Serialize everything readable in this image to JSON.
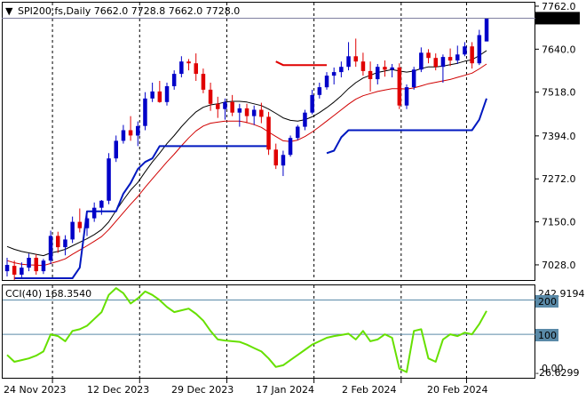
{
  "header": {
    "arrow_glyph": "▼",
    "symbol_line": "SPI200.fs,Daily  7662.0 7728.8 7662.0 7728.0"
  },
  "indicator": {
    "label": "CCI(40) 168.3540"
  },
  "price_axis": {
    "ticks": [
      "7762.0",
      "7640.0",
      "7518.0",
      "7394.0",
      "7272.0",
      "7150.0",
      "7028.0"
    ],
    "current_price_label": "7728.0"
  },
  "cci_axis": {
    "max_label": "242.9194",
    "level_200_label": "200",
    "level_100_label": "100",
    "zero_label": "0.00",
    "min_label": "-26.6299"
  },
  "x_axis": {
    "dates": [
      "24 Nov 2023",
      "12 Dec 2023",
      "29 Dec 2023",
      "17 Jan 2024",
      "2 Feb 2024",
      "20 Feb 2024"
    ]
  },
  "colors": {
    "up_candle": "#0000c8",
    "down_candle": "#e00000",
    "signal_ma": "#000000",
    "slow_ma": "#d00000",
    "stop_line": "#0018c0",
    "cci_line": "#66e000",
    "level_line": "#5a8aa8",
    "grid": "#000000"
  },
  "chart_data": {
    "type": "candlestick",
    "instrument": "SPI200.fs",
    "timeframe": "Daily",
    "price_range": [
      6985,
      7772
    ],
    "last_bar": {
      "open": 7662.0,
      "high": 7728.8,
      "low": 7662.0,
      "close": 7728.0
    },
    "ohlc": [
      [
        7010,
        7048,
        6995,
        7028
      ],
      [
        7025,
        7040,
        6985,
        7000
      ],
      [
        7000,
        7035,
        6992,
        7020
      ],
      [
        7020,
        7060,
        7010,
        7048
      ],
      [
        7048,
        7058,
        7000,
        7010
      ],
      [
        7010,
        7045,
        7002,
        7040
      ],
      [
        7040,
        7125,
        7030,
        7110
      ],
      [
        7110,
        7122,
        7062,
        7078
      ],
      [
        7078,
        7112,
        7055,
        7100
      ],
      [
        7100,
        7165,
        7090,
        7150
      ],
      [
        7150,
        7188,
        7120,
        7132
      ],
      [
        7132,
        7175,
        7110,
        7160
      ],
      [
        7160,
        7205,
        7150,
        7190
      ],
      [
        7190,
        7212,
        7170,
        7210
      ],
      [
        7210,
        7345,
        7200,
        7330
      ],
      [
        7330,
        7395,
        7320,
        7380
      ],
      [
        7380,
        7425,
        7372,
        7410
      ],
      [
        7410,
        7450,
        7380,
        7395
      ],
      [
        7395,
        7435,
        7365,
        7422
      ],
      [
        7422,
        7518,
        7410,
        7500
      ],
      [
        7500,
        7545,
        7490,
        7520
      ],
      [
        7520,
        7550,
        7488,
        7490
      ],
      [
        7490,
        7545,
        7480,
        7535
      ],
      [
        7535,
        7580,
        7525,
        7570
      ],
      [
        7570,
        7620,
        7560,
        7605
      ],
      [
        7605,
        7612,
        7580,
        7600
      ],
      [
        7600,
        7628,
        7550,
        7570
      ],
      [
        7570,
        7585,
        7515,
        7525
      ],
      [
        7525,
        7545,
        7465,
        7485
      ],
      [
        7485,
        7505,
        7445,
        7470
      ],
      [
        7470,
        7500,
        7440,
        7490
      ],
      [
        7490,
        7510,
        7450,
        7460
      ],
      [
        7460,
        7485,
        7420,
        7472
      ],
      [
        7472,
        7485,
        7430,
        7450
      ],
      [
        7450,
        7480,
        7425,
        7468
      ],
      [
        7468,
        7488,
        7430,
        7448
      ],
      [
        7448,
        7462,
        7340,
        7355
      ],
      [
        7355,
        7372,
        7300,
        7310
      ],
      [
        7310,
        7352,
        7280,
        7340
      ],
      [
        7340,
        7395,
        7335,
        7388
      ],
      [
        7388,
        7425,
        7382,
        7420
      ],
      [
        7420,
        7468,
        7410,
        7460
      ],
      [
        7460,
        7525,
        7455,
        7510
      ],
      [
        7510,
        7545,
        7500,
        7532
      ],
      [
        7532,
        7575,
        7525,
        7565
      ],
      [
        7565,
        7588,
        7540,
        7575
      ],
      [
        7575,
        7605,
        7560,
        7590
      ],
      [
        7590,
        7660,
        7580,
        7620
      ],
      [
        7620,
        7670,
        7590,
        7605
      ],
      [
        7605,
        7630,
        7565,
        7578
      ],
      [
        7578,
        7605,
        7520,
        7555
      ],
      [
        7555,
        7598,
        7540,
        7590
      ],
      [
        7590,
        7608,
        7562,
        7582
      ],
      [
        7582,
        7598,
        7560,
        7588
      ],
      [
        7588,
        7600,
        7470,
        7480
      ],
      [
        7480,
        7540,
        7470,
        7532
      ],
      [
        7532,
        7590,
        7525,
        7582
      ],
      [
        7582,
        7645,
        7575,
        7630
      ],
      [
        7630,
        7640,
        7600,
        7615
      ],
      [
        7615,
        7628,
        7580,
        7590
      ],
      [
        7590,
        7625,
        7545,
        7618
      ],
      [
        7618,
        7642,
        7592,
        7608
      ],
      [
        7608,
        7650,
        7598,
        7625
      ],
      [
        7625,
        7660,
        7620,
        7648
      ],
      [
        7648,
        7660,
        7585,
        7600
      ],
      [
        7600,
        7695,
        7595,
        7680
      ],
      [
        7662.0,
        7728.8,
        7662.0,
        7728.0
      ]
    ],
    "signal_ma": [
      7080,
      7072,
      7066,
      7062,
      7058,
      7054,
      7062,
      7066,
      7072,
      7082,
      7092,
      7102,
      7114,
      7128,
      7150,
      7182,
      7212,
      7240,
      7262,
      7292,
      7320,
      7345,
      7372,
      7395,
      7420,
      7442,
      7462,
      7475,
      7482,
      7485,
      7490,
      7492,
      7492,
      7490,
      7485,
      7480,
      7470,
      7458,
      7445,
      7438,
      7436,
      7440,
      7448,
      7460,
      7474,
      7490,
      7508,
      7528,
      7545,
      7558,
      7566,
      7574,
      7578,
      7582,
      7578,
      7575,
      7578,
      7585,
      7590,
      7590,
      7592,
      7596,
      7600,
      7606,
      7610,
      7622,
      7636
    ],
    "slow_ma": [
      7040,
      7034,
      7030,
      7028,
      7027,
      7026,
      7032,
      7038,
      7045,
      7058,
      7070,
      7082,
      7095,
      7108,
      7128,
      7152,
      7176,
      7200,
      7222,
      7248,
      7272,
      7296,
      7320,
      7342,
      7366,
      7388,
      7408,
      7422,
      7430,
      7433,
      7436,
      7436,
      7436,
      7432,
      7426,
      7418,
      7405,
      7392,
      7380,
      7378,
      7382,
      7392,
      7405,
      7420,
      7436,
      7452,
      7468,
      7484,
      7498,
      7508,
      7514,
      7520,
      7524,
      7528,
      7528,
      7527,
      7530,
      7536,
      7542,
      7546,
      7550,
      7554,
      7560,
      7566,
      7572,
      7584,
      7598
    ],
    "stop_line": [
      null,
      6990,
      6990,
      6990,
      6990,
      6990,
      6990,
      6990,
      6990,
      6990,
      7020,
      7180,
      7180,
      7180,
      7180,
      7180,
      7230,
      7260,
      7300,
      7320,
      7330,
      7365,
      7365,
      7365,
      7365,
      7365,
      7365,
      7365,
      7365,
      7365,
      7365,
      7365,
      7365,
      7365,
      7365,
      7365,
      7365,
      null,
      null,
      null,
      null,
      null,
      null,
      null,
      null,
      null,
      null,
      null,
      null,
      null,
      null,
      null,
      null,
      null,
      null,
      null,
      null,
      null,
      null,
      null,
      null,
      null,
      null,
      null,
      null,
      null,
      null
    ],
    "stop_line_upper": [
      null,
      null,
      null,
      null,
      null,
      null,
      null,
      null,
      null,
      null,
      null,
      null,
      null,
      null,
      null,
      null,
      null,
      null,
      null,
      null,
      null,
      null,
      null,
      null,
      null,
      null,
      null,
      null,
      null,
      null,
      null,
      null,
      null,
      null,
      null,
      null,
      null,
      7605,
      7595,
      7595,
      7595,
      7595,
      7595,
      7595,
      7595,
      null,
      null,
      null,
      null,
      null,
      null,
      null,
      null,
      null,
      null,
      null,
      null,
      null,
      null,
      null,
      null,
      null,
      null,
      null,
      null,
      null,
      null
    ],
    "stop_line_late": [
      null,
      null,
      null,
      null,
      null,
      null,
      null,
      null,
      null,
      null,
      null,
      null,
      null,
      null,
      null,
      null,
      null,
      null,
      null,
      null,
      null,
      null,
      null,
      null,
      null,
      null,
      null,
      null,
      null,
      null,
      null,
      null,
      null,
      null,
      null,
      null,
      null,
      null,
      null,
      null,
      null,
      null,
      null,
      null,
      7345,
      7352,
      7390,
      7410,
      7410,
      7410,
      7410,
      7410,
      7410,
      7410,
      7410,
      7410,
      7410,
      7410,
      7410,
      7410,
      7410,
      7410,
      7410,
      7410,
      7410,
      7440,
      7500
    ],
    "cci": {
      "name": "CCI(40)",
      "last_value": 168.354,
      "range": [
        -26.6299,
        242.9194
      ],
      "levels": [
        200,
        100
      ],
      "values": [
        40,
        20,
        25,
        30,
        38,
        50,
        100,
        95,
        80,
        110,
        115,
        125,
        145,
        165,
        215,
        235,
        220,
        190,
        205,
        225,
        215,
        200,
        180,
        165,
        170,
        175,
        160,
        140,
        110,
        85,
        82,
        80,
        78,
        70,
        60,
        50,
        30,
        5,
        10,
        25,
        40,
        55,
        70,
        80,
        90,
        95,
        98,
        102,
        85,
        110,
        80,
        85,
        100,
        90,
        0,
        -10,
        110,
        115,
        30,
        20,
        85,
        100,
        95,
        105,
        100,
        130,
        168.354
      ]
    }
  }
}
